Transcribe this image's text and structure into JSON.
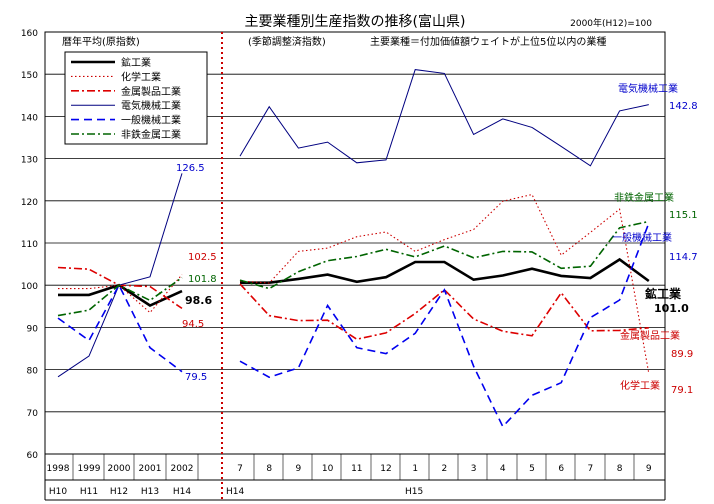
{
  "chart_data": {
    "type": "line",
    "title": "主要業種別生産指数の推移(富山県)",
    "base_note": "2000年(H12)=100",
    "annual_label": "暦年平均(原指数)",
    "monthly_label": "(季節調整済指数)",
    "industry_note": "主要業種＝付加価値額ウェイトが上位5位以内の業種",
    "ylim": [
      60,
      160
    ],
    "yticks": [
      "60",
      "70",
      "80",
      "90",
      "100",
      "110",
      "120",
      "130",
      "140",
      "150",
      "160"
    ],
    "annual_years": [
      "1998",
      "1999",
      "2000",
      "2001",
      "2002"
    ],
    "annual_eras": [
      "H10",
      "H11",
      "H12",
      "H13",
      "H14"
    ],
    "months": [
      "7",
      "8",
      "9",
      "10",
      "11",
      "12",
      "1",
      "2",
      "3",
      "4",
      "5",
      "6",
      "7",
      "8",
      "9"
    ],
    "month_eras": [
      "H14",
      "H15"
    ],
    "grid": true,
    "legend_position": "top-left",
    "series": [
      {
        "name": "鉱工業",
        "color": "#000000",
        "dash": "solid",
        "width": 2.6,
        "annual": [
          97.7,
          97.7,
          100,
          95.2,
          98.6
        ],
        "monthly": [
          100.6,
          100.6,
          101.5,
          102.5,
          100.8,
          101.9,
          105.5,
          105.5,
          101.3,
          102.3,
          103.9,
          102.2,
          101.7,
          106.1,
          101.0
        ],
        "label": "鉱工業",
        "value_label": "101.0",
        "annual_value_label": "98.6",
        "label_color": "#000000"
      },
      {
        "name": "化学工業",
        "color": "#cc0000",
        "dash": "dot",
        "width": 1.1,
        "annual": [
          99.2,
          99.2,
          100,
          93.5,
          102.5
        ],
        "monthly": [
          101.0,
          100.5,
          108.0,
          108.8,
          111.5,
          112.6,
          108.0,
          110.8,
          113.2,
          119.9,
          121.5,
          107.1,
          112.5,
          118.0,
          79.1
        ],
        "label": "化学工業",
        "value_label": "79.1",
        "annual_value_label": "102.5",
        "label_color": "#cc0000"
      },
      {
        "name": "金属製品工業",
        "color": "#dd0000",
        "dash": "dashdot",
        "width": 1.6,
        "annual": [
          104.2,
          103.8,
          100,
          99.7,
          94.5
        ],
        "monthly": [
          100.3,
          92.8,
          91.6,
          91.7,
          87.2,
          88.7,
          93.3,
          98.9,
          92.0,
          89.1,
          88.0,
          98.2,
          89.2,
          89.3,
          89.9
        ],
        "label": "金属製品工業",
        "value_label": "89.9",
        "annual_value_label": "94.5",
        "label_color": "#cc0000"
      },
      {
        "name": "電気機械工業",
        "color": "#000080",
        "dash": "solid",
        "width": 1.0,
        "annual": [
          78.3,
          83.2,
          100,
          102.0,
          126.5
        ],
        "monthly": [
          130.6,
          142.3,
          132.5,
          133.9,
          129.0,
          129.7,
          151.1,
          150.2,
          135.7,
          139.4,
          137.4,
          132.9,
          128.3,
          141.3,
          142.8
        ],
        "label": "電気機械工業",
        "value_label": "142.8",
        "annual_value_label": "126.5",
        "label_color": "#0000cc"
      },
      {
        "name": "一般機械工業",
        "color": "#0000ee",
        "dash": "dash",
        "width": 1.6,
        "annual": [
          92.2,
          86.9,
          100,
          85.2,
          79.5
        ],
        "monthly": [
          82.0,
          78.2,
          80.4,
          95.2,
          85.2,
          83.8,
          88.6,
          98.9,
          80.8,
          66.5,
          73.9,
          76.9,
          92.3,
          96.5,
          114.7
        ],
        "label": "一般機械工業",
        "value_label": "114.7",
        "annual_value_label": "79.5",
        "label_color": "#0000cc"
      },
      {
        "name": "非鉄金属工業",
        "color": "#006400",
        "dash": "dashdot",
        "width": 1.6,
        "annual": [
          92.8,
          94.1,
          100,
          96.4,
          101.8
        ],
        "monthly": [
          101.2,
          99.2,
          103.2,
          105.8,
          106.8,
          108.5,
          106.7,
          109.3,
          106.5,
          108.0,
          107.9,
          104.0,
          104.5,
          113.6,
          115.1
        ],
        "label": "非鉄金属工業",
        "value_label": "115.1",
        "annual_value_label": "101.8",
        "label_color": "#006400"
      }
    ]
  }
}
